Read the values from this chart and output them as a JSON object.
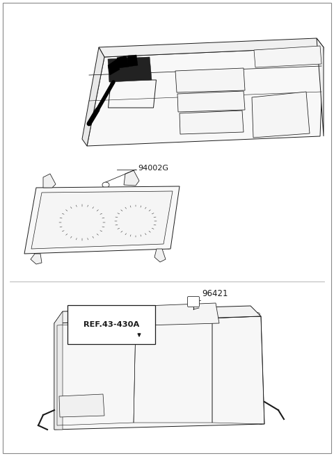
{
  "bg_color": "#ffffff",
  "border_color": "#888888",
  "label_94002G": "94002G",
  "label_96421": "96421",
  "label_ref": "REF.43-430A",
  "line_color": "#1a1a1a",
  "text_color": "#1a1a1a",
  "line_width": 0.7,
  "fig_w": 4.8,
  "fig_h": 6.56,
  "dpi": 100
}
